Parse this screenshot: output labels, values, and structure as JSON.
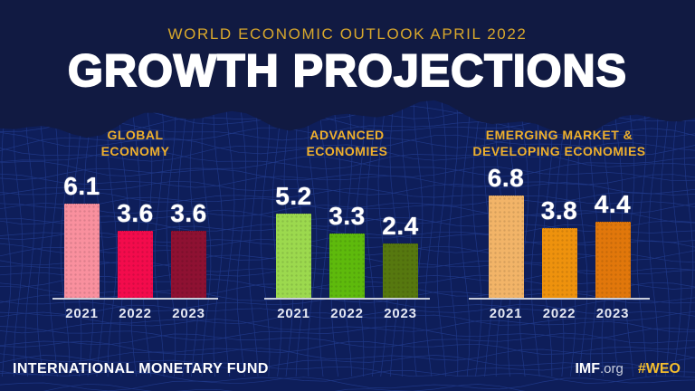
{
  "meta": {
    "subtitle": "WORLD ECONOMIC OUTLOOK APRIL 2022",
    "title": "GROWTH PROJECTIONS",
    "footer_left": "INTERNATIONAL MONETARY FUND",
    "footer_right_brand": "IMF",
    "footer_right_domain": ".org",
    "footer_right_hashtag": "#WEO"
  },
  "colors": {
    "background": "#0E1E5A",
    "header_bg": "#111A42",
    "mesh_line": "#2E4FB0",
    "subtitle_gold": "#D9A82C",
    "group_title_gold": "#EFB02D",
    "hashtag_gold": "#F3BD2E",
    "title_white": "#FFFFFF",
    "year_text": "#E4E7F2",
    "axis": "#C9CEDC"
  },
  "chart_data": {
    "type": "bar",
    "title": "GROWTH PROJECTIONS",
    "subtitle": "WORLD ECONOMIC OUTLOOK APRIL 2022",
    "categories": [
      "2021",
      "2022",
      "2023"
    ],
    "value_format": "one_decimal",
    "ylim": [
      0,
      7
    ],
    "grid": false,
    "legend": false,
    "groups": [
      {
        "name": "GLOBAL ECONOMY",
        "title_lines": [
          "GLOBAL",
          "ECONOMY"
        ],
        "values": [
          6.1,
          3.6,
          3.6
        ],
        "bar_colors": [
          "#F9909E",
          "#F30B4C",
          "#8E1132"
        ]
      },
      {
        "name": "ADVANCED ECONOMIES",
        "title_lines": [
          "ADVANCED",
          "ECONOMIES"
        ],
        "values": [
          5.2,
          3.3,
          2.4
        ],
        "bar_colors": [
          "#9CD94E",
          "#5EBA0C",
          "#56780F"
        ]
      },
      {
        "name": "EMERGING MARKET & DEVELOPING ECONOMIES",
        "title_lines": [
          "EMERGING MARKET &",
          "DEVELOPING ECONOMIES"
        ],
        "values": [
          6.8,
          3.8,
          4.4
        ],
        "bar_colors": [
          "#F2B468",
          "#EE920D",
          "#E1770B"
        ]
      }
    ]
  }
}
